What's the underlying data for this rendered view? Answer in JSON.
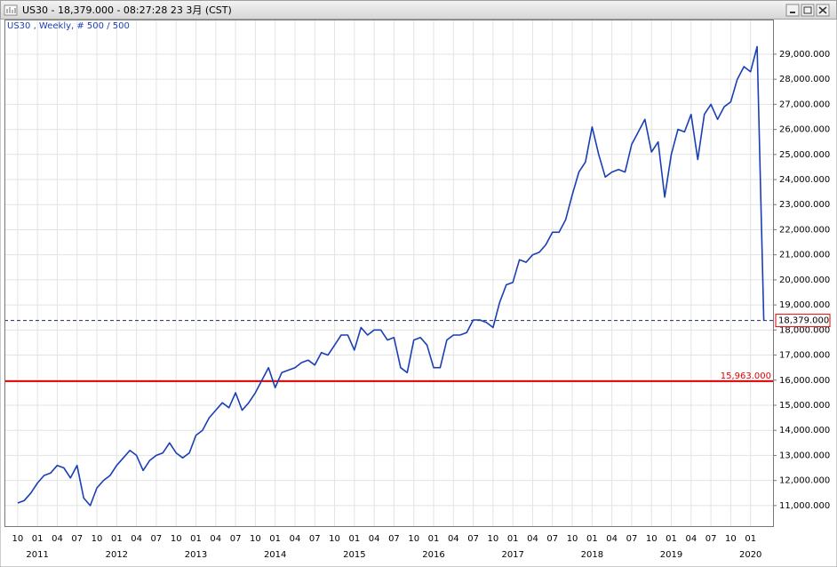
{
  "window_title": "US30 - 18,379.000 - 08:27:28  23 3月 (CST)",
  "chart_data": {
    "type": "line",
    "subtitle": "US30 , Weekly, # 500 / 500",
    "x": [
      "2010-10",
      "2010-11",
      "2010-12",
      "2011-01",
      "2011-02",
      "2011-03",
      "2011-04",
      "2011-05",
      "2011-06",
      "2011-07",
      "2011-08",
      "2011-09",
      "2011-10",
      "2011-11",
      "2011-12",
      "2012-01",
      "2012-02",
      "2012-03",
      "2012-04",
      "2012-05",
      "2012-06",
      "2012-07",
      "2012-08",
      "2012-09",
      "2012-10",
      "2012-11",
      "2012-12",
      "2013-01",
      "2013-02",
      "2013-03",
      "2013-04",
      "2013-05",
      "2013-06",
      "2013-07",
      "2013-08",
      "2013-09",
      "2013-10",
      "2013-11",
      "2013-12",
      "2014-01",
      "2014-02",
      "2014-03",
      "2014-04",
      "2014-05",
      "2014-06",
      "2014-07",
      "2014-08",
      "2014-09",
      "2014-10",
      "2014-11",
      "2014-12",
      "2015-01",
      "2015-02",
      "2015-03",
      "2015-04",
      "2015-05",
      "2015-06",
      "2015-07",
      "2015-08",
      "2015-09",
      "2015-10",
      "2015-11",
      "2015-12",
      "2016-01",
      "2016-02",
      "2016-03",
      "2016-04",
      "2016-05",
      "2016-06",
      "2016-07",
      "2016-08",
      "2016-09",
      "2016-10",
      "2016-11",
      "2016-12",
      "2017-01",
      "2017-02",
      "2017-03",
      "2017-04",
      "2017-05",
      "2017-06",
      "2017-07",
      "2017-08",
      "2017-09",
      "2017-10",
      "2017-11",
      "2017-12",
      "2018-01",
      "2018-02",
      "2018-03",
      "2018-04",
      "2018-05",
      "2018-06",
      "2018-07",
      "2018-08",
      "2018-09",
      "2018-10",
      "2018-11",
      "2018-12",
      "2019-01",
      "2019-02",
      "2019-03",
      "2019-04",
      "2019-05",
      "2019-06",
      "2019-07",
      "2019-08",
      "2019-09",
      "2019-10",
      "2019-11",
      "2019-12",
      "2020-01",
      "2020-02",
      "2020-03"
    ],
    "series": [
      {
        "name": "US30",
        "color": "#1a3fb5",
        "values": [
          11100,
          11200,
          11500,
          11900,
          12200,
          12300,
          12600,
          12500,
          12100,
          12600,
          11300,
          11000,
          11700,
          12000,
          12200,
          12600,
          12900,
          13200,
          13000,
          12400,
          12800,
          13000,
          13100,
          13500,
          13100,
          12900,
          13100,
          13800,
          14000,
          14500,
          14800,
          15100,
          14900,
          15500,
          14800,
          15100,
          15500,
          16000,
          16500,
          15700,
          16300,
          16400,
          16500,
          16700,
          16800,
          16600,
          17100,
          17000,
          17400,
          17800,
          17800,
          17200,
          18100,
          17800,
          18000,
          18000,
          17600,
          17700,
          16500,
          16300,
          17600,
          17700,
          17400,
          16500,
          16500,
          17600,
          17800,
          17800,
          17900,
          18400,
          18400,
          18300,
          18100,
          19100,
          19800,
          19900,
          20800,
          20700,
          21000,
          21100,
          21400,
          21900,
          21900,
          22400,
          23400,
          24300,
          24700,
          26100,
          25000,
          24100,
          24300,
          24400,
          24300,
          25400,
          25900,
          26400,
          25100,
          25500,
          23300,
          25000,
          26000,
          25900,
          26600,
          24800,
          26600,
          27000,
          26400,
          26900,
          27100,
          28000,
          28500,
          28300,
          29300,
          18379
        ]
      }
    ],
    "xlim": [
      "2010-08",
      "2020-04"
    ],
    "ylim": [
      10180,
      30380
    ],
    "yticks": [
      {
        "value": 11000,
        "label": "11,000.000"
      },
      {
        "value": 12000,
        "label": "12,000.000"
      },
      {
        "value": 13000,
        "label": "13,000.000"
      },
      {
        "value": 14000,
        "label": "14,000.000"
      },
      {
        "value": 15000,
        "label": "15,000.000"
      },
      {
        "value": 16000,
        "label": "16,000.000"
      },
      {
        "value": 17000,
        "label": "17,000.000"
      },
      {
        "value": 18000,
        "label": "18,000.000"
      },
      {
        "value": 19000,
        "label": "19,000.000"
      },
      {
        "value": 20000,
        "label": "20,000.000"
      },
      {
        "value": 21000,
        "label": "21,000.000"
      },
      {
        "value": 22000,
        "label": "22,000.000"
      },
      {
        "value": 23000,
        "label": "23,000.000"
      },
      {
        "value": 24000,
        "label": "24,000.000"
      },
      {
        "value": 25000,
        "label": "25,000.000"
      },
      {
        "value": 26000,
        "label": "26,000.000"
      },
      {
        "value": 27000,
        "label": "27,000.000"
      },
      {
        "value": 28000,
        "label": "28,000.000"
      },
      {
        "value": 29000,
        "label": "29,000.000"
      }
    ],
    "xticks": [
      {
        "value": "2010-10",
        "label": "10"
      },
      {
        "value": "2011-01",
        "label": "01"
      },
      {
        "value": "2011-04",
        "label": "04"
      },
      {
        "value": "2011-07",
        "label": "07"
      },
      {
        "value": "2011-10",
        "label": "10"
      },
      {
        "value": "2012-01",
        "label": "01"
      },
      {
        "value": "2012-04",
        "label": "04"
      },
      {
        "value": "2012-07",
        "label": "07"
      },
      {
        "value": "2012-10",
        "label": "10"
      },
      {
        "value": "2013-01",
        "label": "01"
      },
      {
        "value": "2013-04",
        "label": "04"
      },
      {
        "value": "2013-07",
        "label": "07"
      },
      {
        "value": "2013-10",
        "label": "10"
      },
      {
        "value": "2014-01",
        "label": "01"
      },
      {
        "value": "2014-04",
        "label": "04"
      },
      {
        "value": "2014-07",
        "label": "07"
      },
      {
        "value": "2014-10",
        "label": "10"
      },
      {
        "value": "2015-01",
        "label": "01"
      },
      {
        "value": "2015-04",
        "label": "04"
      },
      {
        "value": "2015-07",
        "label": "07"
      },
      {
        "value": "2015-10",
        "label": "10"
      },
      {
        "value": "2016-01",
        "label": "01"
      },
      {
        "value": "2016-04",
        "label": "04"
      },
      {
        "value": "2016-07",
        "label": "07"
      },
      {
        "value": "2016-10",
        "label": "10"
      },
      {
        "value": "2017-01",
        "label": "01"
      },
      {
        "value": "2017-04",
        "label": "04"
      },
      {
        "value": "2017-07",
        "label": "07"
      },
      {
        "value": "2017-10",
        "label": "10"
      },
      {
        "value": "2018-01",
        "label": "01"
      },
      {
        "value": "2018-04",
        "label": "04"
      },
      {
        "value": "2018-07",
        "label": "07"
      },
      {
        "value": "2018-10",
        "label": "10"
      },
      {
        "value": "2019-01",
        "label": "01"
      },
      {
        "value": "2019-04",
        "label": "04"
      },
      {
        "value": "2019-07",
        "label": "07"
      },
      {
        "value": "2019-10",
        "label": "10"
      },
      {
        "value": "2020-01",
        "label": "01"
      }
    ],
    "year_labels": [
      {
        "value": "2011-01",
        "label": "2011"
      },
      {
        "value": "2012-01",
        "label": "2012"
      },
      {
        "value": "2013-01",
        "label": "2013"
      },
      {
        "value": "2014-01",
        "label": "2014"
      },
      {
        "value": "2015-01",
        "label": "2015"
      },
      {
        "value": "2016-01",
        "label": "2016"
      },
      {
        "value": "2017-01",
        "label": "2017"
      },
      {
        "value": "2018-01",
        "label": "2018"
      },
      {
        "value": "2019-01",
        "label": "2019"
      },
      {
        "value": "2020-01",
        "label": "2020"
      }
    ],
    "grid": true,
    "current_price": {
      "value": 18379,
      "label": "18,379.000"
    },
    "level_line": {
      "value": 15963,
      "label": "15,963.000",
      "color": "#e00000"
    }
  }
}
